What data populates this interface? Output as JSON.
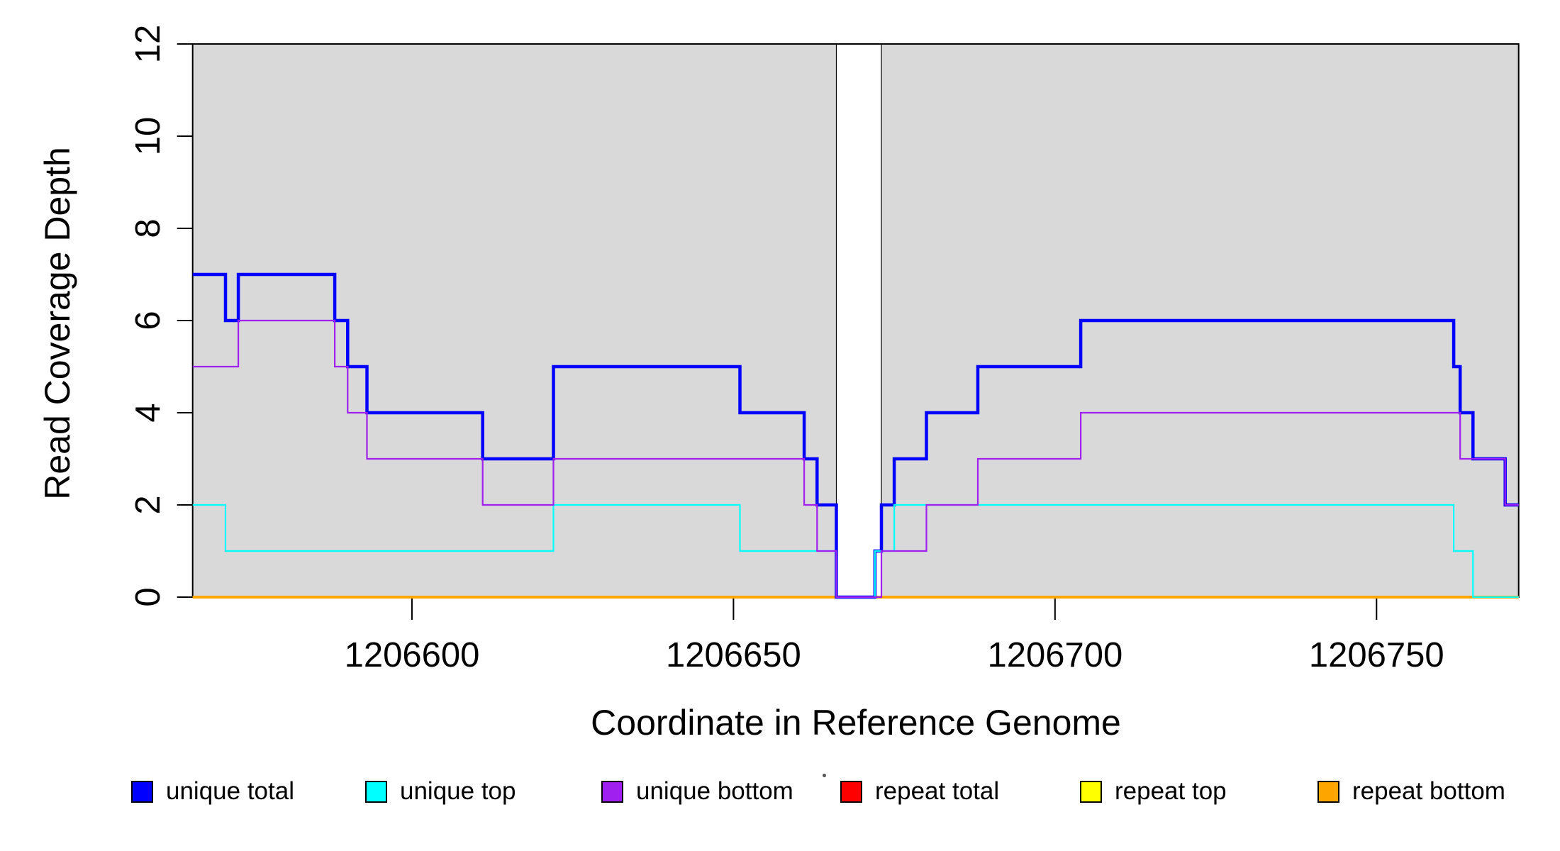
{
  "chart_data": {
    "type": "line",
    "subtype": "step",
    "xlabel": "Coordinate in Reference Genome",
    "ylabel": "Read Coverage Depth",
    "xlim": [
      1206565.9,
      1206772.1
    ],
    "ylim": [
      0,
      12
    ],
    "x_ticks": [
      "1206600",
      "1206650",
      "1206700",
      "1206750"
    ],
    "x_tick_values": [
      1206600,
      1206650,
      1206700,
      1206750
    ],
    "y_ticks": [
      "0",
      "2",
      "4",
      "6",
      "8",
      "10",
      "12"
    ],
    "y_tick_values": [
      0,
      2,
      4,
      6,
      8,
      10,
      12
    ],
    "grid": false,
    "plot_background": "#FFFFFF",
    "shaded_regions": [
      {
        "name": "aligned-region-left",
        "x0": 1206565.9,
        "x1": 1206666.0,
        "fill": "#D9D9D9",
        "border": "#000000"
      },
      {
        "name": "aligned-region-right",
        "x0": 1206673.0,
        "x1": 1206772.1,
        "fill": "#D9D9D9",
        "border": "#000000"
      }
    ],
    "gap_region": {
      "x0": 1206666.0,
      "x1": 1206673.0,
      "fill": "#FFFFFF"
    },
    "series": [
      {
        "name": "repeat total",
        "color": "#FF0000",
        "stroke_width": 2,
        "points": [
          [
            1206565.9,
            0
          ]
        ]
      },
      {
        "name": "repeat top",
        "color": "#FFFF00",
        "stroke_width": 2,
        "points": [
          [
            1206565.9,
            0
          ]
        ]
      },
      {
        "name": "repeat bottom",
        "color": "#FFA500",
        "stroke_width": 4,
        "points": [
          [
            1206565.9,
            0
          ]
        ]
      },
      {
        "name": "unique total",
        "color": "#0000FF",
        "stroke_width": 4.5,
        "points": [
          [
            1206565.9,
            7
          ],
          [
            1206571,
            6
          ],
          [
            1206573,
            7
          ],
          [
            1206588,
            6
          ],
          [
            1206590,
            5
          ],
          [
            1206593,
            4
          ],
          [
            1206611,
            3
          ],
          [
            1206622,
            5
          ],
          [
            1206651,
            4
          ],
          [
            1206661,
            3
          ],
          [
            1206663,
            2
          ],
          [
            1206666,
            0
          ],
          [
            1206672,
            1
          ],
          [
            1206673,
            2
          ],
          [
            1206675,
            3
          ],
          [
            1206680,
            4
          ],
          [
            1206688,
            5
          ],
          [
            1206704,
            6
          ],
          [
            1206762,
            5
          ],
          [
            1206763,
            4
          ],
          [
            1206765,
            3
          ],
          [
            1206770,
            2
          ]
        ]
      },
      {
        "name": "unique top",
        "color": "#00FFFF",
        "stroke_width": 2.2,
        "points": [
          [
            1206565.9,
            2
          ],
          [
            1206571,
            1
          ],
          [
            1206622,
            2
          ],
          [
            1206651,
            1
          ],
          [
            1206666,
            0
          ],
          [
            1206672,
            1
          ],
          [
            1206675,
            2
          ],
          [
            1206762,
            1
          ],
          [
            1206765,
            0
          ]
        ]
      },
      {
        "name": "unique bottom",
        "color": "#A020F0",
        "stroke_width": 2.2,
        "points": [
          [
            1206565.9,
            5
          ],
          [
            1206573,
            6
          ],
          [
            1206588,
            5
          ],
          [
            1206590,
            4
          ],
          [
            1206593,
            3
          ],
          [
            1206611,
            2
          ],
          [
            1206622,
            3
          ],
          [
            1206661,
            2
          ],
          [
            1206663,
            1
          ],
          [
            1206666,
            0
          ],
          [
            1206673,
            1
          ],
          [
            1206680,
            2
          ],
          [
            1206688,
            3
          ],
          [
            1206704,
            4
          ],
          [
            1206763,
            3
          ],
          [
            1206770,
            2
          ]
        ]
      }
    ]
  },
  "titles": {
    "x_axis": "Coordinate in Reference Genome",
    "y_axis": "Read Coverage Depth"
  },
  "legend": {
    "items": [
      {
        "label": "unique total",
        "color": "#0000FF"
      },
      {
        "label": "unique top",
        "color": "#00FFFF"
      },
      {
        "label": "unique bottom",
        "color": "#A020F0"
      },
      {
        "label": "repeat total",
        "color": "#FF0000"
      },
      {
        "label": "repeat top",
        "color": "#FFFF00"
      },
      {
        "label": "repeat bottom",
        "color": "#FFA500"
      }
    ]
  }
}
